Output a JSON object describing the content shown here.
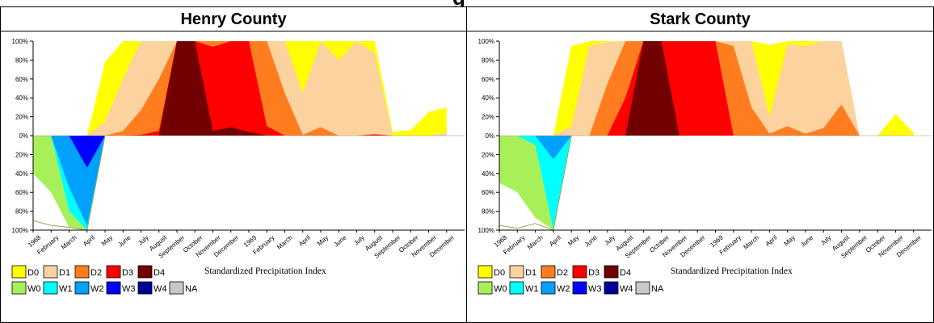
{
  "header_fragment": "g",
  "legend": {
    "caption": "Standardized Precipitation Index",
    "row1": [
      {
        "label": "D0",
        "color": "#ffff00"
      },
      {
        "label": "D1",
        "color": "#fcd29f"
      },
      {
        "label": "D2",
        "color": "#ff7d1e"
      },
      {
        "label": "D3",
        "color": "#ff0000"
      },
      {
        "label": "D4",
        "color": "#730000"
      }
    ],
    "row2": [
      {
        "label": "W0",
        "color": "#a8f05a"
      },
      {
        "label": "W1",
        "color": "#00ffff"
      },
      {
        "label": "W2",
        "color": "#00a0ff"
      },
      {
        "label": "W3",
        "color": "#0000ff"
      },
      {
        "label": "W4",
        "color": "#000096"
      },
      {
        "label": "NA",
        "color": "#c8c8c8"
      }
    ]
  },
  "chart_data": [
    {
      "type": "area",
      "title": "Henry County",
      "x": [
        "1968",
        "February",
        "March",
        "April",
        "May",
        "June",
        "July",
        "August",
        "September",
        "October",
        "November",
        "December",
        "1969",
        "February",
        "March",
        "April",
        "May",
        "June",
        "July",
        "August",
        "September",
        "October",
        "November",
        "December"
      ],
      "y_ticks": [
        "100%",
        "80%",
        "60%",
        "40%",
        "20%",
        "0%",
        "20%",
        "40%",
        "60%",
        "80%",
        "100%"
      ],
      "ylim": [
        -100,
        100
      ],
      "dry_series": [
        {
          "name": "D4",
          "color": "#730000",
          "values": [
            0,
            0,
            0,
            0,
            0,
            0,
            0,
            0,
            100,
            100,
            5,
            9,
            4,
            0,
            0,
            0,
            0,
            0,
            0,
            0,
            0,
            0,
            0,
            0
          ]
        },
        {
          "name": "D3",
          "color": "#ff0000",
          "values": [
            0,
            0,
            0,
            0,
            0,
            0,
            1,
            5,
            100,
            100,
            94,
            100,
            100,
            10,
            0,
            0,
            0,
            0,
            0,
            1,
            0,
            0,
            0,
            0
          ]
        },
        {
          "name": "D2",
          "color": "#ff7d1e",
          "values": [
            0,
            0,
            0,
            0,
            0,
            5,
            27,
            60,
            100,
            100,
            100,
            100,
            100,
            100,
            45,
            1,
            9,
            0,
            0,
            2,
            0,
            0,
            0,
            0
          ]
        },
        {
          "name": "D1",
          "color": "#fcd29f",
          "values": [
            0,
            0,
            0,
            0,
            15,
            60,
            100,
            100,
            100,
            100,
            100,
            100,
            100,
            100,
            100,
            45,
            100,
            80,
            100,
            87,
            0,
            0,
            0,
            3
          ]
        },
        {
          "name": "D0",
          "color": "#ffff00",
          "values": [
            0,
            0,
            0,
            0,
            78,
            100,
            100,
            100,
            100,
            100,
            100,
            100,
            100,
            100,
            100,
            100,
            100,
            100,
            100,
            100,
            4,
            6,
            25,
            30
          ]
        }
      ],
      "wet_series": [
        {
          "name": "W4",
          "color": "#000096",
          "values": [
            0,
            0,
            0,
            0,
            0,
            0,
            0,
            0,
            0,
            0,
            0,
            0,
            0,
            0,
            0,
            0,
            0,
            0,
            0,
            0,
            0,
            0,
            0,
            0
          ]
        },
        {
          "name": "W3",
          "color": "#0000ff",
          "values": [
            0,
            0,
            0,
            34,
            0,
            0,
            0,
            0,
            0,
            0,
            0,
            0,
            0,
            0,
            0,
            0,
            0,
            0,
            0,
            0,
            0,
            0,
            0,
            0
          ]
        },
        {
          "name": "W2",
          "color": "#00a0ff",
          "values": [
            0,
            0,
            55,
            95,
            0,
            0,
            0,
            0,
            0,
            0,
            0,
            0,
            0,
            0,
            0,
            0,
            0,
            0,
            0,
            0,
            0,
            0,
            0,
            0
          ]
        },
        {
          "name": "W1",
          "color": "#00ffff",
          "values": [
            0,
            0,
            80,
            100,
            0,
            0,
            0,
            0,
            0,
            0,
            0,
            0,
            0,
            0,
            0,
            0,
            0,
            0,
            0,
            0,
            0,
            0,
            0,
            0
          ]
        },
        {
          "name": "W0",
          "color": "#a8f05a",
          "values": [
            40,
            60,
            97,
            100,
            0,
            0,
            0,
            0,
            0,
            0,
            0,
            0,
            0,
            0,
            0,
            0,
            0,
            0,
            0,
            0,
            0,
            0,
            0,
            0
          ]
        }
      ],
      "wet_outline": [
        90,
        95,
        97,
        100,
        0,
        0,
        0,
        0,
        0,
        0,
        0,
        0,
        0,
        0,
        0,
        0,
        0,
        0,
        0,
        0,
        0,
        0,
        0,
        0
      ]
    },
    {
      "type": "area",
      "title": "Stark County",
      "x": [
        "1968",
        "February",
        "March",
        "April",
        "May",
        "June",
        "July",
        "August",
        "September",
        "October",
        "November",
        "December",
        "1969",
        "February",
        "March",
        "April",
        "May",
        "June",
        "July",
        "August",
        "September",
        "October",
        "November",
        "December"
      ],
      "y_ticks": [
        "100%",
        "80%",
        "60%",
        "40%",
        "20%",
        "0%",
        "20%",
        "40%",
        "60%",
        "80%",
        "100%"
      ],
      "ylim": [
        -100,
        100
      ],
      "dry_series": [
        {
          "name": "D4",
          "color": "#730000",
          "values": [
            0,
            0,
            0,
            0,
            0,
            0,
            0,
            0,
            100,
            100,
            0,
            0,
            0,
            0,
            0,
            0,
            0,
            0,
            0,
            0,
            0,
            0,
            0,
            0
          ]
        },
        {
          "name": "D3",
          "color": "#ff0000",
          "values": [
            0,
            0,
            0,
            0,
            0,
            0,
            0,
            40,
            100,
            100,
            100,
            100,
            100,
            0,
            0,
            0,
            0,
            0,
            0,
            0,
            0,
            0,
            0,
            0
          ]
        },
        {
          "name": "D2",
          "color": "#ff7d1e",
          "values": [
            0,
            0,
            0,
            0,
            0,
            0,
            55,
            100,
            100,
            100,
            100,
            100,
            100,
            95,
            30,
            2,
            10,
            2,
            8,
            33,
            0,
            0,
            0,
            0
          ]
        },
        {
          "name": "D1",
          "color": "#fcd29f",
          "values": [
            0,
            0,
            0,
            0,
            10,
            95,
            99,
            100,
            100,
            100,
            100,
            100,
            100,
            100,
            100,
            20,
            97,
            95,
            100,
            100,
            0,
            0,
            0,
            0
          ]
        },
        {
          "name": "D0",
          "color": "#ffff00",
          "values": [
            0,
            0,
            0,
            0,
            95,
            100,
            100,
            100,
            100,
            100,
            100,
            100,
            100,
            100,
            100,
            96,
            100,
            100,
            100,
            100,
            0,
            0,
            23,
            3
          ]
        }
      ],
      "wet_series": [
        {
          "name": "W4",
          "color": "#000096",
          "values": [
            0,
            0,
            0,
            0,
            0,
            0,
            0,
            0,
            0,
            0,
            0,
            0,
            0,
            0,
            0,
            0,
            0,
            0,
            0,
            0,
            0,
            0,
            0,
            0
          ]
        },
        {
          "name": "W3",
          "color": "#0000ff",
          "values": [
            0,
            0,
            0,
            0,
            0,
            0,
            0,
            0,
            0,
            0,
            0,
            0,
            0,
            0,
            0,
            0,
            0,
            0,
            0,
            0,
            0,
            0,
            0,
            0
          ]
        },
        {
          "name": "W2",
          "color": "#00a0ff",
          "values": [
            0,
            0,
            0,
            25,
            0,
            0,
            0,
            0,
            0,
            0,
            0,
            0,
            0,
            0,
            0,
            0,
            0,
            0,
            0,
            0,
            0,
            0,
            0,
            0
          ]
        },
        {
          "name": "W1",
          "color": "#00ffff",
          "values": [
            0,
            0,
            10,
            100,
            0,
            0,
            0,
            0,
            0,
            0,
            0,
            0,
            0,
            0,
            0,
            0,
            0,
            0,
            0,
            0,
            0,
            0,
            0,
            0
          ]
        },
        {
          "name": "W0",
          "color": "#a8f05a",
          "values": [
            50,
            60,
            87,
            100,
            0,
            0,
            0,
            0,
            0,
            0,
            0,
            0,
            0,
            0,
            0,
            0,
            0,
            0,
            0,
            0,
            0,
            0,
            0,
            0
          ]
        }
      ],
      "wet_outline": [
        95,
        98,
        93,
        100,
        0,
        0,
        0,
        0,
        0,
        0,
        0,
        0,
        0,
        0,
        0,
        0,
        0,
        0,
        0,
        0,
        0,
        0,
        0,
        0
      ]
    }
  ]
}
